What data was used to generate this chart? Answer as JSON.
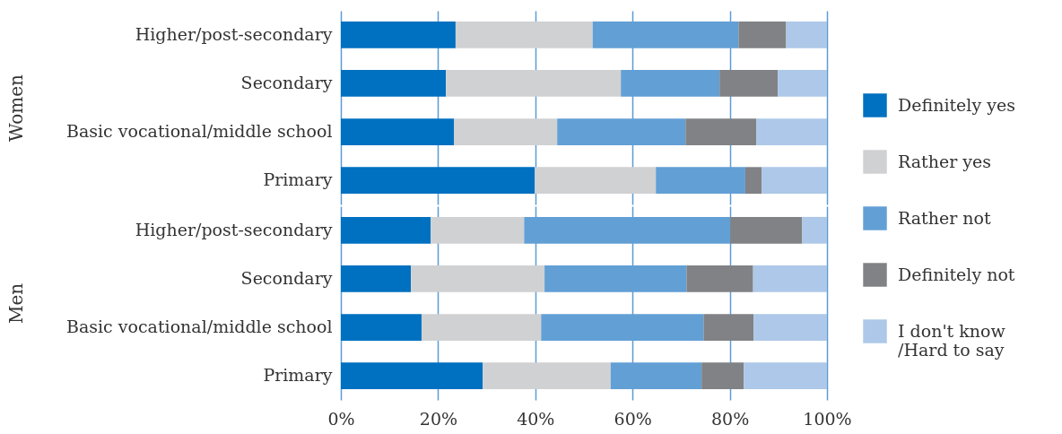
{
  "chart_data": [
    {
      "type": "bar",
      "orientation": "horizontal",
      "stacked": true,
      "ylabel": "Women",
      "categories": [
        "Higher/post-secondary",
        "Secondary",
        "Basic vocational/middle school",
        "Primary"
      ],
      "xlim": [
        0,
        100
      ],
      "xticks": [
        {
          "value": 0,
          "label": null
        },
        {
          "value": 20,
          "label": null
        },
        {
          "value": 40,
          "label": null
        },
        {
          "value": 60,
          "label": null
        },
        {
          "value": 80,
          "label": null
        },
        {
          "value": 100,
          "label": null
        }
      ],
      "tick_labels": "y",
      "grid": "x",
      "legend": "right",
      "series": [
        {
          "name": "Definitely yes",
          "color": "#0070c0",
          "values": [
            23.6,
            21.6,
            23.3,
            39.9
          ]
        },
        {
          "name": "Rather yes",
          "color": "#d0d1d3",
          "values": [
            28.2,
            36.0,
            21.2,
            24.9
          ]
        },
        {
          "name": "Rather not",
          "color": "#629fd5",
          "values": [
            30.0,
            20.3,
            26.4,
            18.4
          ]
        },
        {
          "name": "Definitely not",
          "color": "#808285",
          "values": [
            9.8,
            12.0,
            14.6,
            3.4
          ]
        },
        {
          "name": "I don't know /Hard to say",
          "color": "#adc8e8",
          "values": [
            8.4,
            10.1,
            14.5,
            13.4
          ]
        }
      ]
    },
    {
      "type": "bar",
      "orientation": "horizontal",
      "stacked": true,
      "ylabel": "Men",
      "categories": [
        "Higher/post-secondary",
        "Secondary",
        "Basic vocational/middle school",
        "Primary"
      ],
      "xlim": [
        0,
        100
      ],
      "xticks": [
        {
          "value": 0,
          "label": "0%"
        },
        {
          "value": 20,
          "label": "20%"
        },
        {
          "value": 40,
          "label": "40%"
        },
        {
          "value": 60,
          "label": "60%"
        },
        {
          "value": 80,
          "label": "80%"
        },
        {
          "value": 100,
          "label": "100%"
        }
      ],
      "grid": "x",
      "legend": "right",
      "series": [
        {
          "name": "Definitely yes",
          "color": "#0070c0",
          "values": [
            18.5,
            14.4,
            16.6,
            29.2
          ]
        },
        {
          "name": "Rather yes",
          "color": "#d0d1d3",
          "values": [
            19.2,
            27.5,
            24.6,
            26.3
          ]
        },
        {
          "name": "Rather not",
          "color": "#629fd5",
          "values": [
            42.4,
            29.2,
            33.4,
            18.7
          ]
        },
        {
          "name": "Definitely not",
          "color": "#808285",
          "values": [
            14.8,
            13.7,
            10.3,
            8.7
          ]
        },
        {
          "name": "I don't know /Hard to say",
          "color": "#adc8e8",
          "values": [
            5.1,
            15.2,
            15.1,
            17.1
          ]
        }
      ]
    }
  ]
}
